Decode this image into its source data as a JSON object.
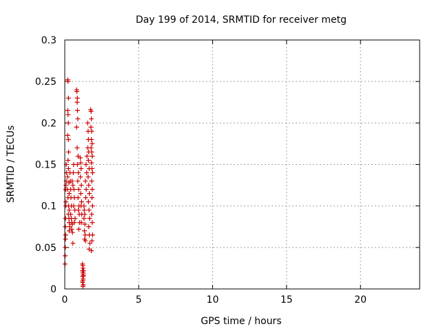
{
  "chart_data": {
    "type": "scatter",
    "title": "Day 199 of 2014, SRMTID for receiver metg",
    "xlabel": "GPS time / hours",
    "ylabel": "SRMTID / TECUs",
    "xlim": [
      0,
      24
    ],
    "ylim": [
      0,
      0.3
    ],
    "xticks": [
      0,
      5,
      10,
      15,
      20
    ],
    "yticks": [
      0,
      0.05,
      0.1,
      0.15,
      0.2,
      0.25,
      0.3
    ],
    "xtick_labels": [
      "0",
      "5",
      "10",
      "15",
      "20"
    ],
    "ytick_labels": [
      "0",
      "0.05",
      "0.1",
      "0.15",
      "0.2",
      "0.25",
      "0.3"
    ],
    "grid": true,
    "marker": "plus",
    "color": "#cc0000",
    "series": [
      {
        "points": [
          [
            0.02,
            0.03
          ],
          [
            0.03,
            0.04
          ],
          [
            0.04,
            0.05
          ],
          [
            0.05,
            0.06
          ],
          [
            0.06,
            0.065
          ],
          [
            0.04,
            0.075
          ],
          [
            0.05,
            0.085
          ],
          [
            0.07,
            0.1
          ],
          [
            0.08,
            0.105
          ],
          [
            0.06,
            0.12
          ],
          [
            0.08,
            0.125
          ],
          [
            0.1,
            0.13
          ],
          [
            0.12,
            0.14
          ],
          [
            0.1,
            0.15
          ],
          [
            0.2,
            0.252
          ],
          [
            0.22,
            0.25
          ],
          [
            0.25,
            0.23
          ],
          [
            0.2,
            0.215
          ],
          [
            0.22,
            0.21
          ],
          [
            0.24,
            0.2
          ],
          [
            0.2,
            0.185
          ],
          [
            0.24,
            0.18
          ],
          [
            0.26,
            0.165
          ],
          [
            0.22,
            0.155
          ],
          [
            0.25,
            0.145
          ],
          [
            0.2,
            0.135
          ],
          [
            0.28,
            0.128
          ],
          [
            0.18,
            0.12
          ],
          [
            0.3,
            0.115
          ],
          [
            0.22,
            0.11
          ],
          [
            0.26,
            0.1
          ],
          [
            0.3,
            0.095
          ],
          [
            0.24,
            0.09
          ],
          [
            0.28,
            0.085
          ],
          [
            0.3,
            0.08
          ],
          [
            0.34,
            0.075
          ],
          [
            0.3,
            0.07
          ],
          [
            0.35,
            0.14
          ],
          [
            0.38,
            0.13
          ],
          [
            0.4,
            0.12
          ],
          [
            0.42,
            0.11
          ],
          [
            0.45,
            0.1
          ],
          [
            0.4,
            0.09
          ],
          [
            0.44,
            0.085
          ],
          [
            0.48,
            0.08
          ],
          [
            0.5,
            0.078
          ],
          [
            0.46,
            0.072
          ],
          [
            0.52,
            0.068
          ],
          [
            0.55,
            0.055
          ],
          [
            0.5,
            0.13
          ],
          [
            0.55,
            0.125
          ],
          [
            0.6,
            0.15
          ],
          [
            0.58,
            0.14
          ],
          [
            0.62,
            0.12
          ],
          [
            0.65,
            0.11
          ],
          [
            0.6,
            0.1
          ],
          [
            0.68,
            0.095
          ],
          [
            0.7,
            0.085
          ],
          [
            0.64,
            0.08
          ],
          [
            0.8,
            0.24
          ],
          [
            0.82,
            0.238
          ],
          [
            0.85,
            0.23
          ],
          [
            0.84,
            0.225
          ],
          [
            0.86,
            0.215
          ],
          [
            0.88,
            0.205
          ],
          [
            0.8,
            0.195
          ],
          [
            0.84,
            0.17
          ],
          [
            0.9,
            0.16
          ],
          [
            0.86,
            0.15
          ],
          [
            0.92,
            0.14
          ],
          [
            0.88,
            0.13
          ],
          [
            0.94,
            0.12
          ],
          [
            0.9,
            0.11
          ],
          [
            0.96,
            0.1
          ],
          [
            0.92,
            0.095
          ],
          [
            0.98,
            0.09
          ],
          [
            1.0,
            0.08
          ],
          [
            0.95,
            0.072
          ],
          [
            1.05,
            0.158
          ],
          [
            1.08,
            0.152
          ],
          [
            1.1,
            0.145
          ],
          [
            1.06,
            0.135
          ],
          [
            1.12,
            0.125
          ],
          [
            1.08,
            0.115
          ],
          [
            1.14,
            0.105
          ],
          [
            1.1,
            0.1
          ],
          [
            1.15,
            0.09
          ],
          [
            1.12,
            0.08
          ],
          [
            1.2,
            0.03
          ],
          [
            1.22,
            0.028
          ],
          [
            1.24,
            0.025
          ],
          [
            1.2,
            0.022
          ],
          [
            1.23,
            0.02
          ],
          [
            1.25,
            0.018
          ],
          [
            1.21,
            0.015
          ],
          [
            1.24,
            0.012
          ],
          [
            1.22,
            0.01
          ],
          [
            1.2,
            0.008
          ],
          [
            1.25,
            0.005
          ],
          [
            1.23,
            0.003
          ],
          [
            1.27,
            0.022
          ],
          [
            1.26,
            0.016
          ],
          [
            1.3,
            0.1
          ],
          [
            1.32,
            0.095
          ],
          [
            1.35,
            0.09
          ],
          [
            1.3,
            0.085
          ],
          [
            1.36,
            0.078
          ],
          [
            1.33,
            0.07
          ],
          [
            1.38,
            0.065
          ],
          [
            1.34,
            0.06
          ],
          [
            1.4,
            0.058
          ],
          [
            1.42,
            0.11
          ],
          [
            1.45,
            0.12
          ],
          [
            1.4,
            0.13
          ],
          [
            1.48,
            0.14
          ],
          [
            1.44,
            0.15
          ],
          [
            1.5,
            0.16
          ],
          [
            1.55,
            0.2
          ],
          [
            1.58,
            0.19
          ],
          [
            1.6,
            0.18
          ],
          [
            1.56,
            0.17
          ],
          [
            1.62,
            0.165
          ],
          [
            1.6,
            0.155
          ],
          [
            1.65,
            0.145
          ],
          [
            1.58,
            0.135
          ],
          [
            1.62,
            0.125
          ],
          [
            1.66,
            0.115
          ],
          [
            1.6,
            0.105
          ],
          [
            1.64,
            0.095
          ],
          [
            1.68,
            0.085
          ],
          [
            1.62,
            0.075
          ],
          [
            1.66,
            0.065
          ],
          [
            1.7,
            0.055
          ],
          [
            1.65,
            0.048
          ],
          [
            1.75,
            0.216
          ],
          [
            1.78,
            0.214
          ],
          [
            1.8,
            0.205
          ],
          [
            1.77,
            0.195
          ],
          [
            1.82,
            0.19
          ],
          [
            1.8,
            0.18
          ],
          [
            1.85,
            0.175
          ],
          [
            1.78,
            0.17
          ],
          [
            1.82,
            0.165
          ],
          [
            1.86,
            0.16
          ],
          [
            1.8,
            0.152
          ],
          [
            1.84,
            0.145
          ],
          [
            1.88,
            0.14
          ],
          [
            1.82,
            0.13
          ],
          [
            1.86,
            0.12
          ],
          [
            1.84,
            0.11
          ],
          [
            1.88,
            0.1
          ],
          [
            1.82,
            0.09
          ],
          [
            1.86,
            0.08
          ],
          [
            1.88,
            0.065
          ],
          [
            1.84,
            0.058
          ],
          [
            1.8,
            0.046
          ]
        ]
      }
    ]
  }
}
